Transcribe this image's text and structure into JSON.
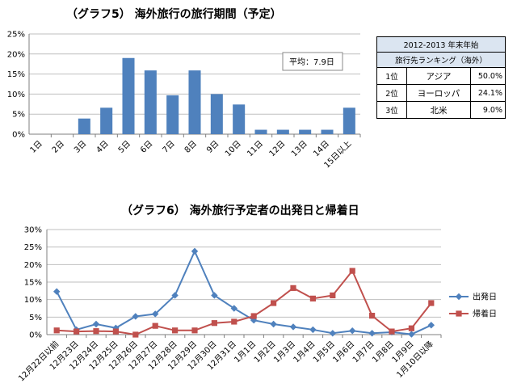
{
  "chart_data": [
    {
      "type": "bar",
      "title": "（グラフ5） 海外旅行の旅行期間（予定）",
      "categories": [
        "1日",
        "2日",
        "3日",
        "4日",
        "5日",
        "6日",
        "7日",
        "8日",
        "9日",
        "10日",
        "11日",
        "12日",
        "13日",
        "14日",
        "15日以上"
      ],
      "values": [
        0,
        0,
        3.9,
        6.6,
        19.0,
        15.9,
        9.7,
        15.9,
        10.0,
        7.4,
        1.1,
        1.1,
        1.1,
        1.1,
        6.6
      ],
      "ylim": [
        0,
        25
      ],
      "yticks": [
        "0%",
        "5%",
        "10%",
        "15%",
        "20%",
        "25%"
      ],
      "grid": true,
      "bar_color": "#4f81bd",
      "annotation": "平均：7.9日"
    },
    {
      "type": "line",
      "title": "（グラフ6） 海外旅行予定者の出発日と帰着日",
      "categories": [
        "12月22日以前",
        "12月23日",
        "12月24日",
        "12月25日",
        "12月26日",
        "12月27日",
        "12月28日",
        "12月29日",
        "12月30日",
        "12月31日",
        "1月1日",
        "1月2日",
        "1月3日",
        "1月4日",
        "1月5日",
        "1月6日",
        "1月7日",
        "1月8日",
        "1月9日",
        "1月10日以降"
      ],
      "series": [
        {
          "name": "出発日",
          "color": "#4f81bd",
          "marker": "diamond",
          "values": [
            12.3,
            1.4,
            3.0,
            1.9,
            5.2,
            5.9,
            11.2,
            23.8,
            11.2,
            7.5,
            4.1,
            3.0,
            2.2,
            1.4,
            0.4,
            1.1,
            0.4,
            0.7,
            0.1,
            2.7
          ]
        },
        {
          "name": "帰着日",
          "color": "#c0504d",
          "marker": "square",
          "values": [
            1.2,
            0.9,
            1.0,
            0.9,
            0.0,
            2.5,
            1.2,
            1.2,
            3.3,
            3.7,
            5.3,
            9.0,
            13.3,
            10.3,
            11.2,
            18.2,
            5.4,
            0.9,
            1.8,
            9.0
          ]
        }
      ],
      "ylim": [
        0,
        30
      ],
      "yticks": [
        "0%",
        "5%",
        "10%",
        "15%",
        "20%",
        "25%",
        "30%"
      ],
      "grid": true,
      "legend_position": "right"
    }
  ],
  "ranking": {
    "header_line1": "2012-2013 年末年始",
    "header_line2": "旅行先ランキング（海外）",
    "rows": [
      {
        "rank": "1位",
        "region": "アジア",
        "share": "50.0%"
      },
      {
        "rank": "2位",
        "region": "ヨーロッパ",
        "share": "24.1%"
      },
      {
        "rank": "3位",
        "region": "北米",
        "share": "9.0%"
      }
    ]
  }
}
